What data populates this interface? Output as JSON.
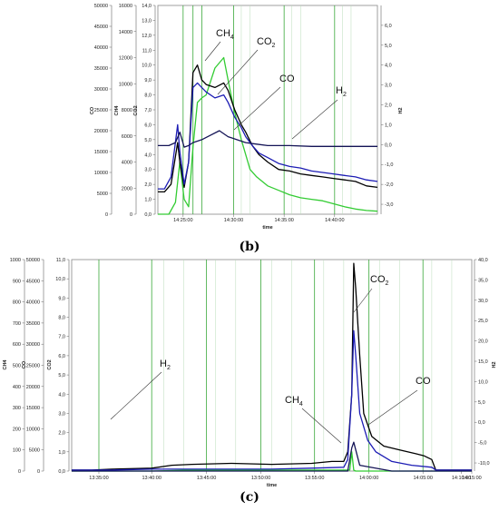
{
  "chart_data": [
    {
      "type": "line",
      "caption": "(b)",
      "xlabel": "time",
      "x_ticks": [
        "14:25:00",
        "14:30:00",
        "14:35:00",
        "14:40:00"
      ],
      "axes": [
        {
          "label": "CH4",
          "range": [
            0,
            16000
          ],
          "ticks": [
            "0",
            "2000",
            "4000",
            "6000",
            "8000",
            "10000",
            "12000",
            "14000",
            "16000"
          ]
        },
        {
          "label": "CO",
          "range": [
            0,
            50000
          ],
          "ticks": [
            "0",
            "5000",
            "10000",
            "15000",
            "20000",
            "25000",
            "30000",
            "35000",
            "40000",
            "45000",
            "50000"
          ]
        },
        {
          "label": "CO2",
          "range": [
            0,
            14
          ],
          "ticks": [
            "0,0",
            "1,0",
            "2,0",
            "3,0",
            "4,0",
            "5,0",
            "6,0",
            "7,0",
            "8,0",
            "9,0",
            "10,0",
            "11,0",
            "12,0",
            "13,0",
            "14,0"
          ]
        },
        {
          "label": "H2",
          "range": [
            -3.5,
            7
          ],
          "ticks": [
            "-3,0",
            "-2,0",
            "-1,0",
            "0,0",
            "1,0",
            "2,0",
            "3,0",
            "4,0",
            "5,0",
            "6,0"
          ]
        }
      ],
      "annotations": [
        {
          "text": "CH",
          "sub": "4"
        },
        {
          "text": "CO",
          "sub": "2"
        },
        {
          "text": "CO",
          "sub": ""
        },
        {
          "text": "H",
          "sub": "2"
        }
      ],
      "series": [
        {
          "name": "CH4",
          "color": "#33cc33",
          "x": [
            0,
            0.05,
            0.08,
            0.1,
            0.12,
            0.14,
            0.16,
            0.18,
            0.2,
            0.22,
            0.26,
            0.3,
            0.32,
            0.34,
            0.36,
            0.38,
            0.4,
            0.42,
            0.45,
            0.5,
            0.55,
            0.6,
            0.65,
            0.7,
            0.75,
            0.8,
            0.85,
            0.9,
            0.95,
            1.0
          ],
          "y": [
            0,
            0,
            0.8,
            3.5,
            1.0,
            0.5,
            4.5,
            7.5,
            7.8,
            8.0,
            9.8,
            10.5,
            9.0,
            7.5,
            6.2,
            5.0,
            4.0,
            3.0,
            2.5,
            1.9,
            1.6,
            1.3,
            1.1,
            1.0,
            0.9,
            0.7,
            0.5,
            0.35,
            0.25,
            0.2
          ]
        },
        {
          "name": "CO2",
          "color": "#000000",
          "x": [
            0,
            0.03,
            0.06,
            0.09,
            0.1,
            0.12,
            0.14,
            0.16,
            0.18,
            0.2,
            0.22,
            0.26,
            0.3,
            0.32,
            0.35,
            0.38,
            0.4,
            0.43,
            0.46,
            0.5,
            0.55,
            0.6,
            0.65,
            0.7,
            0.75,
            0.8,
            0.85,
            0.9,
            0.95,
            1.0
          ],
          "y": [
            1.5,
            1.5,
            2.0,
            4.8,
            3.5,
            1.8,
            3.5,
            9.5,
            10.0,
            9.0,
            8.7,
            8.5,
            8.8,
            8.3,
            7.0,
            6.0,
            5.5,
            4.6,
            4.0,
            3.5,
            3.0,
            2.9,
            2.7,
            2.6,
            2.5,
            2.4,
            2.3,
            2.2,
            1.9,
            1.8
          ]
        },
        {
          "name": "CO",
          "color": "#1c1cb4",
          "x": [
            0,
            0.03,
            0.06,
            0.09,
            0.1,
            0.12,
            0.14,
            0.16,
            0.18,
            0.2,
            0.22,
            0.26,
            0.3,
            0.32,
            0.35,
            0.38,
            0.4,
            0.43,
            0.46,
            0.5,
            0.55,
            0.6,
            0.65,
            0.7,
            0.75,
            0.8,
            0.85,
            0.9,
            0.95,
            1.0
          ],
          "y": [
            1.7,
            1.7,
            2.5,
            6.0,
            4.2,
            2.0,
            3.5,
            8.5,
            8.8,
            8.5,
            8.2,
            7.8,
            8.0,
            7.5,
            6.5,
            5.8,
            5.2,
            4.6,
            4.1,
            3.8,
            3.4,
            3.2,
            3.1,
            2.9,
            2.8,
            2.7,
            2.6,
            2.5,
            2.3,
            2.2
          ]
        },
        {
          "name": "H2",
          "color": "#141456",
          "x": [
            0,
            0.05,
            0.08,
            0.1,
            0.12,
            0.14,
            0.16,
            0.2,
            0.24,
            0.28,
            0.32,
            0.36,
            0.4,
            0.45,
            0.5,
            0.6,
            0.7,
            0.8,
            0.9,
            1.0
          ],
          "y": [
            4.6,
            4.6,
            4.8,
            5.5,
            4.5,
            4.6,
            4.8,
            5.0,
            5.3,
            5.6,
            5.2,
            5.0,
            4.8,
            4.7,
            4.6,
            4.6,
            4.55,
            4.55,
            4.55,
            4.55
          ]
        }
      ]
    },
    {
      "type": "line",
      "caption": "(c)",
      "xlabel": "time",
      "x_ticks": [
        "13:35:00",
        "13:40:00",
        "13:45:00",
        "13:50:00",
        "13:55:00",
        "14:00:00",
        "14:05:00",
        "14:10:00",
        "14:15:00"
      ],
      "axes": [
        {
          "label": "CH4",
          "range": [
            0,
            1000
          ],
          "ticks": [
            "0",
            "100",
            "200",
            "300",
            "400",
            "500",
            "600",
            "700",
            "800",
            "900",
            "1000"
          ]
        },
        {
          "label": "CO",
          "range": [
            0,
            50000
          ],
          "ticks": [
            "0",
            "5000",
            "10000",
            "15000",
            "20000",
            "25000",
            "30000",
            "35000",
            "40000",
            "45000",
            "50000"
          ]
        },
        {
          "label": "CO2",
          "range": [
            0,
            11
          ],
          "ticks": [
            "0,0",
            "1,0",
            "2,0",
            "3,0",
            "4,0",
            "5,0",
            "6,0",
            "7,0",
            "8,0",
            "9,0",
            "10,0",
            "11,0"
          ]
        },
        {
          "label": "H2",
          "range": [
            -12,
            40
          ],
          "ticks": [
            "-10,0",
            "-5,0",
            "0,0",
            "5,0",
            "10,0",
            "15,0",
            "20,0",
            "25,0",
            "30,0",
            "35,0",
            "40,0"
          ]
        }
      ],
      "annotations": [
        {
          "text": "H",
          "sub": "2"
        },
        {
          "text": "CH",
          "sub": "4"
        },
        {
          "text": "CO",
          "sub": "2"
        },
        {
          "text": "CO",
          "sub": ""
        }
      ],
      "series": [
        {
          "name": "CH4",
          "color": "#33cc33",
          "x": [
            0,
            0.1,
            0.2,
            0.3,
            0.4,
            0.5,
            0.6,
            0.68,
            0.695,
            0.7,
            0.705,
            0.71,
            0.8,
            0.9,
            1.0
          ],
          "y": [
            0,
            0,
            0,
            0.05,
            0.05,
            0.05,
            0.05,
            0.05,
            0.05,
            1.0,
            0.05,
            0,
            0,
            0,
            0
          ]
        },
        {
          "name": "CO2",
          "color": "#000000",
          "x": [
            0,
            0.05,
            0.1,
            0.2,
            0.25,
            0.3,
            0.4,
            0.5,
            0.6,
            0.65,
            0.68,
            0.69,
            0.7,
            0.705,
            0.71,
            0.72,
            0.73,
            0.75,
            0.78,
            0.82,
            0.86,
            0.88,
            0.9,
            0.91,
            0.95,
            1.0
          ],
          "y": [
            0.05,
            0.05,
            0.1,
            0.15,
            0.3,
            0.35,
            0.4,
            0.35,
            0.4,
            0.5,
            0.5,
            1.0,
            4.0,
            10.8,
            9.5,
            6.0,
            3.0,
            1.8,
            1.3,
            1.1,
            0.9,
            0.8,
            0.6,
            0.05,
            0.05,
            0.05
          ]
        },
        {
          "name": "CO",
          "color": "#1c1cb4",
          "x": [
            0,
            0.1,
            0.2,
            0.3,
            0.4,
            0.5,
            0.6,
            0.68,
            0.69,
            0.7,
            0.705,
            0.71,
            0.72,
            0.74,
            0.76,
            0.8,
            0.85,
            0.9,
            0.91,
            0.95,
            1.0
          ],
          "y": [
            0.05,
            0.05,
            0.1,
            0.1,
            0.1,
            0.1,
            0.15,
            0.2,
            0.6,
            4.0,
            7.3,
            6.0,
            3.0,
            1.6,
            1.0,
            0.5,
            0.3,
            0.2,
            0.05,
            0.05,
            0.05
          ]
        },
        {
          "name": "H2",
          "color": "#141456",
          "x": [
            0,
            0.2,
            0.4,
            0.6,
            0.69,
            0.7,
            0.705,
            0.72,
            0.8,
            0.9,
            1.0
          ],
          "y": [
            0,
            0,
            0,
            0,
            0,
            1.2,
            1.5,
            0.3,
            0,
            0,
            0
          ]
        }
      ]
    }
  ]
}
